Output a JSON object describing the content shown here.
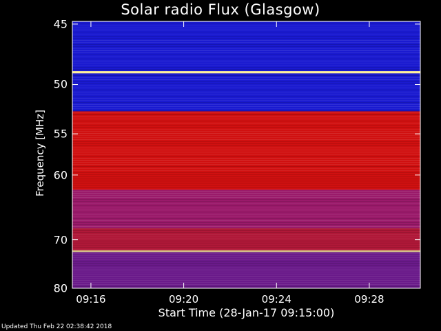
{
  "chart_data": {
    "type": "heatmap",
    "title": "Solar radio Flux (Glasgow)",
    "ylabel": "Frequency [MHz]",
    "xlabel": "Start Time (28-Jan-17 09:15:00)",
    "y_ticks": [
      "45",
      "50",
      "55",
      "60",
      "70",
      "80"
    ],
    "y_tick_values": [
      45,
      50,
      55,
      60,
      70,
      80
    ],
    "x_ticks": [
      "09:16",
      "09:20",
      "09:24",
      "09:28"
    ],
    "x_tick_minutes": [
      1,
      5,
      9,
      13
    ],
    "x_range_minutes": [
      0.2,
      15.2
    ],
    "ylim": [
      44.8,
      80
    ],
    "y_scale": "reciprocal",
    "bands": [
      {
        "from": 44.8,
        "to": 48.8,
        "level": "low"
      },
      {
        "from": 48.8,
        "to": 49.0,
        "level": "peak"
      },
      {
        "from": 49.0,
        "to": 52.6,
        "level": "low"
      },
      {
        "from": 52.6,
        "to": 52.9,
        "level": "high"
      },
      {
        "from": 52.9,
        "to": 62.0,
        "level": "high"
      },
      {
        "from": 62.0,
        "to": 68.0,
        "level": "medium"
      },
      {
        "from": 68.0,
        "to": 72.0,
        "level": "medium-high"
      },
      {
        "from": 72.0,
        "to": 72.3,
        "level": "peak"
      },
      {
        "from": 72.3,
        "to": 80.0,
        "level": "medium-low"
      }
    ],
    "colors": {
      "low": "#1a1ad0",
      "peak": "#fff0a0",
      "high": "#d01010",
      "medium": "#9a1a6a",
      "medium-high": "#b01838",
      "medium-low": "#6a1a8a"
    }
  },
  "footer": "Updated Thu Feb 22 02:38:42 2018"
}
